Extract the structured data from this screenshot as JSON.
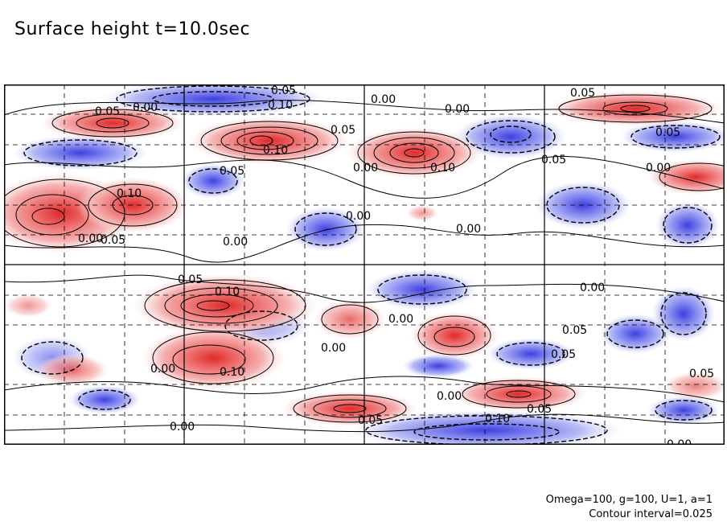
{
  "title": "Surface height t=10.0sec",
  "footer": {
    "params": "Omega=100, g=100, U=1, a=1",
    "interval": "Contour interval=0.025"
  },
  "contour_labels": [
    "0.05",
    "0.00",
    "0.05",
    "0.10",
    "0.00",
    "0.00",
    "0.05",
    "0.05",
    "0.05",
    "0.10",
    "0.05",
    "0.10",
    "0.00",
    "0.05",
    "0.10",
    "0.00",
    "0.05",
    "0.00",
    "0.00",
    "0.00",
    "0.00",
    "0.05",
    "0.10",
    "0.00",
    "0.10",
    "0.00",
    "0.05",
    "0.05",
    "0.00",
    "0.00",
    "0.05",
    "0.05",
    "0.10",
    "0.00",
    "0.05",
    "0.00",
    "0.00"
  ],
  "colors": {
    "positive": "#e33b3b",
    "negative": "#3b43e3"
  }
}
